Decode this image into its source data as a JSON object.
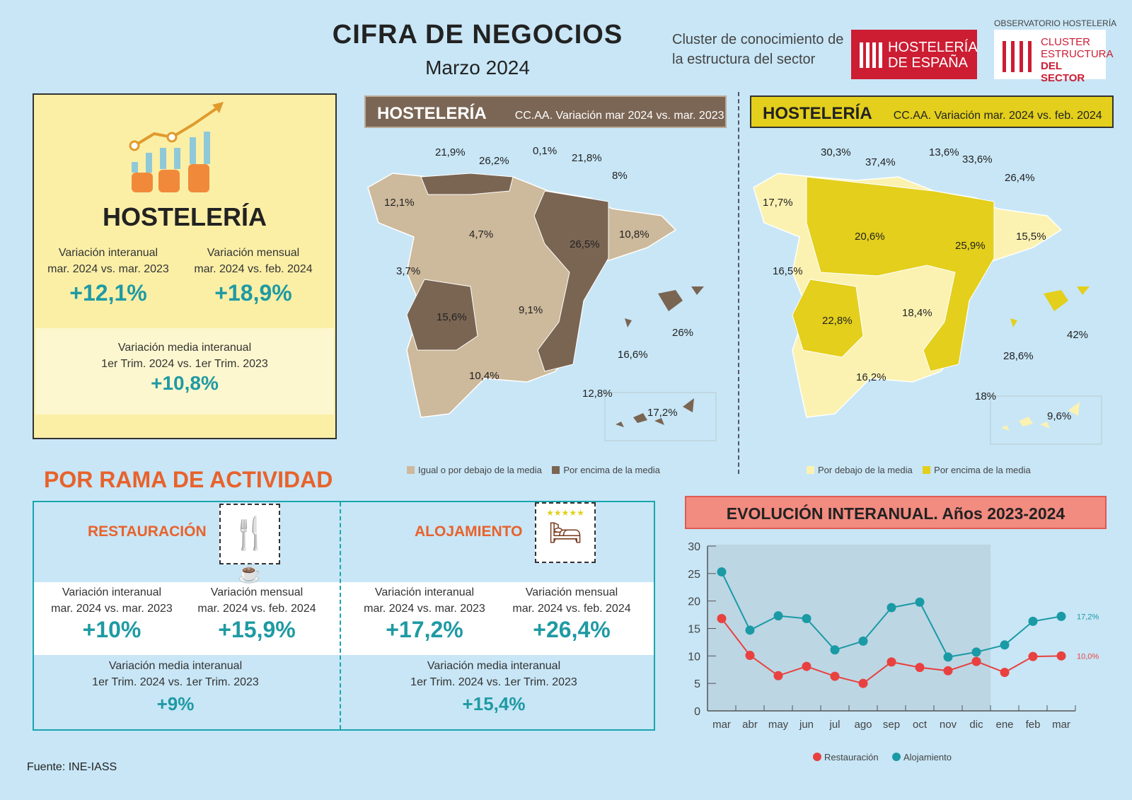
{
  "header": {
    "title": "CIFRA DE NEGOCIOS",
    "subtitle": "Marzo 2024",
    "cluster_text_1": "Cluster de conocimiento de",
    "cluster_text_2": "la estructura del sector",
    "logo_hostel_1": "HOSTELERÍA",
    "logo_hostel_2": "DE ESPAÑA",
    "observatorio": "OBSERVATORIO HOSTELERÍA",
    "logo_cluster_1": "CLUSTER",
    "logo_cluster_2": "ESTRUCTURA",
    "logo_cluster_3": "DEL SECTOR"
  },
  "summary": {
    "title": "HOSTELERÍA",
    "interanual_label_1": "Variación interanual",
    "interanual_label_2": "mar. 2024 vs. mar. 2023",
    "interanual_value": "+12,1%",
    "mensual_label_1": "Variación mensual",
    "mensual_label_2": "mar. 2024 vs. feb. 2024",
    "mensual_value": "+18,9%",
    "media_label_1": "Variación media interanual",
    "media_label_2": "1er Trim. 2024 vs. 1er Trim. 2023",
    "media_value": "+10,8%"
  },
  "map_left": {
    "title": "HOSTELERÍA",
    "subtitle": "CC.AA. Variación mar 2024 vs. mar. 2023",
    "colors": {
      "below": "#cdb99b",
      "above": "#7a6553"
    },
    "labels": [
      "21,9%",
      "26,2%",
      "0,1%",
      "21,8%",
      "8%",
      "12,1%",
      "4,7%",
      "26,5%",
      "10,8%",
      "3,7%",
      "9,1%",
      "15,6%",
      "26%",
      "16,6%",
      "10,4%",
      "12,8%",
      "17,2%"
    ],
    "legend_below": "Igual o por debajo de la media",
    "legend_above": "Por encima de la media"
  },
  "map_right": {
    "title": "HOSTELERÍA",
    "subtitle": "CC.AA. Variación mar. 2024 vs. feb. 2024",
    "colors": {
      "below": "#fbf2b2",
      "above": "#e3cf1c"
    },
    "labels": [
      "30,3%",
      "37,4%",
      "13,6%",
      "33,6%",
      "26,4%",
      "17,7%",
      "20,6%",
      "25,9%",
      "15,5%",
      "16,5%",
      "18,4%",
      "22,8%",
      "42%",
      "28,6%",
      "16,2%",
      "18%",
      "9,6%"
    ],
    "legend_below": "Por debajo de la media",
    "legend_above": "Por encima de la media"
  },
  "rama": {
    "title": "POR RAMA DE ACTIVIDAD",
    "restauracion": {
      "title": "RESTAURACIÓN",
      "interanual_label_1": "Variación interanual",
      "interanual_label_2": "mar. 2024 vs. mar. 2023",
      "interanual_value": "+10%",
      "mensual_label_1": "Variación mensual",
      "mensual_label_2": "mar. 2024 vs. feb. 2024",
      "mensual_value": "+15,9%",
      "media_label_1": "Variación media interanual",
      "media_label_2": "1er Trim. 2024 vs. 1er Trim. 2023",
      "media_value": "+9%"
    },
    "alojamiento": {
      "title": "ALOJAMIENTO",
      "interanual_label_1": "Variación interanual",
      "interanual_label_2": "mar. 2024 vs. mar. 2023",
      "interanual_value": "+17,2%",
      "mensual_label_1": "Variación mensual",
      "mensual_label_2": "mar. 2024 vs. feb. 2024",
      "mensual_value": "+26,4%",
      "media_label_1": "Variación media interanual",
      "media_label_2": "1er Trim. 2024 vs. 1er Trim. 2023",
      "media_value": "+15,4%"
    }
  },
  "chart_data": {
    "type": "line",
    "title": "EVOLUCIÓN INTERANUAL. Años 2023-2024",
    "categories": [
      "mar",
      "abr",
      "may",
      "jun",
      "jul",
      "ago",
      "sep",
      "oct",
      "nov",
      "dic",
      "ene",
      "feb",
      "mar"
    ],
    "ylim": [
      0,
      30
    ],
    "yticks": [
      "0",
      "5",
      "10",
      "15",
      "20",
      "25",
      "30"
    ],
    "grid": false,
    "legend": "bottom",
    "series": [
      {
        "name": "Restauración",
        "color": "#e8413f",
        "values": [
          16.8,
          10.1,
          6.4,
          8.1,
          6.3,
          5.0,
          8.9,
          7.9,
          7.3,
          9.0,
          7.0,
          9.9,
          10.0
        ],
        "end_label": "10,0%"
      },
      {
        "name": "Alojamiento",
        "color": "#1a9aa5",
        "values": [
          25.3,
          14.7,
          17.3,
          16.8,
          11.1,
          12.7,
          18.8,
          19.8,
          9.8,
          10.7,
          12.0,
          16.3,
          17.2
        ],
        "end_label": "17,2%"
      }
    ]
  },
  "footer": {
    "source": "Fuente: INE-IASS"
  }
}
